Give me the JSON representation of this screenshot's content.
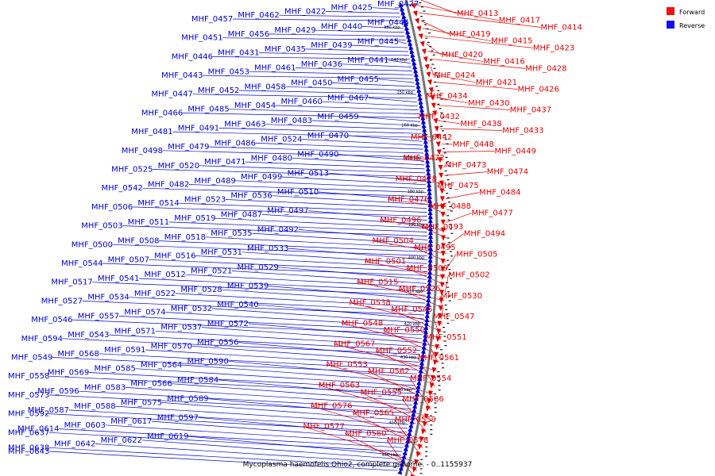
{
  "caption": "Mycoplasma haemofelis Ohio2, complete genome. - 0..1155937",
  "legend": {
    "forward": {
      "label": "Forward",
      "color": "#ee1111"
    },
    "reverse": {
      "label": "Reverse",
      "color": "#1111ee"
    }
  },
  "colors": {
    "forward": "#dd0000",
    "reverse": "#0000cc",
    "backbone": "#777777"
  },
  "ticks": [
    "130 kbp",
    "140 kbp",
    "150 kbp",
    "160 kbp",
    "170 kbp",
    "180 kbp",
    "190 kbp",
    "400 kbp",
    "410 kbp",
    "420 kbp",
    "430 kbp",
    "440 kbp",
    "450 kbp",
    "460 kbp"
  ],
  "reverse_labels": [
    "MHF_0427",
    "MHF_0425",
    "MHF_0422",
    "MHF_0462",
    "MHF_0457",
    "MHF_0444",
    "MHF_0440",
    "MHF_0429",
    "MHF_0456",
    "MHF_0451",
    "MHF_0445",
    "MHF_0439",
    "MHF_0435",
    "MHF_0431",
    "MHF_0446",
    "MHF_0441",
    "MHF_0436",
    "MHF_0461",
    "MHF_0453",
    "MHF_0443",
    "MHF_0455",
    "MHF_0450",
    "MHF_0458",
    "MHF_0452",
    "MHF_0447",
    "MHF_0467",
    "MHF_0460",
    "MHF_0454",
    "MHF_0485",
    "MHF_0466",
    "MHF_0459",
    "MHF_0483",
    "MHF_0463",
    "MHF_0491",
    "MHF_0481",
    "MHF_0470",
    "MHF_0524",
    "MHF_0486",
    "MHF_0479",
    "MHF_0498",
    "MHF_0490",
    "MHF_0480",
    "MHF_0471",
    "MHF_0520",
    "MHF_0525",
    "MHF_0513",
    "MHF_0499",
    "MHF_0489",
    "MHF_0482",
    "MHF_0542",
    "MHF_0510",
    "MHF_0536",
    "MHF_0523",
    "MHF_0514",
    "MHF_0506",
    "MHF_0497",
    "MHF_0487",
    "MHF_0519",
    "MHF_0511",
    "MHF_0503",
    "MHF_0492",
    "MHF_0535",
    "MHF_0518",
    "MHF_0508",
    "MHF_0500",
    "MHF_0533",
    "MHF_0531",
    "MHF_0516",
    "MHF_0507",
    "MHF_0544",
    "MHF_0529",
    "MHF_0521",
    "MHF_0512",
    "MHF_0541",
    "MHF_0517",
    "MHF_0539",
    "MHF_0528",
    "MHF_0522",
    "MHF_0534",
    "MHF_0527",
    "MHF_0540",
    "MHF_0532",
    "MHF_0574",
    "MHF_0557",
    "MHF_0546",
    "MHF_0572",
    "MHF_0537",
    "MHF_0571",
    "MHF_0543",
    "MHF_0594",
    "MHF_0556",
    "MHF_0570",
    "MHF_0591",
    "MHF_0568",
    "MHF_0549",
    "MHF_0590",
    "MHF_0564",
    "MHF_0585",
    "MHF_0569",
    "MHF_0558",
    "MHF_0584",
    "MHF_0566",
    "MHF_0583",
    "MHF_0596",
    "MHF_0573",
    "MHF_0589",
    "MHF_0575",
    "MHF_0588",
    "MHF_0587",
    "MHF_0592",
    "MHF_0597",
    "MHF_0617",
    "MHF_0603",
    "MHF_0614",
    "MHF_0637",
    "MHF_0619",
    "MHF_0622",
    "MHF_0642",
    "MHF_0638",
    "MHF_0643"
  ],
  "forward_labels": [
    "MHF_0413",
    "MHF_0417",
    "MHF_0414",
    "MHF_0419",
    "MHF_0415",
    "MHF_0423",
    "MHF_0420",
    "MHF_0416",
    "MHF_0428",
    "MHF_0424",
    "MHF_0421",
    "MHF_0426",
    "MHF_0434",
    "MHF_0430",
    "MHF_0437",
    "MHF_0432",
    "MHF_0438",
    "MHF_0433",
    "MHF_0442",
    "MHF_0448",
    "MHF_0449",
    "MHF_0472",
    "MHF_0473",
    "MHF_0474",
    "MHF_0478",
    "MHF_0475",
    "MHF_0484",
    "MHF_0476",
    "MHF_0488",
    "MHF_0477",
    "MHF_0496",
    "MHF_0493",
    "MHF_0494",
    "MHF_0504",
    "MHF_0495",
    "MHF_0505",
    "MHF_0501",
    "MHF_0509",
    "MHF_0502",
    "MHF_0515",
    "MHF_0526",
    "MHF_0530",
    "MHF_0538",
    "MHF_0545",
    "MHF_0547",
    "MHF_0548",
    "MHF_0550",
    "MHF_0551",
    "MHF_0567",
    "MHF_0552",
    "MHF_0561",
    "MHF_0553",
    "MHF_0562",
    "MHF_0554",
    "MHF_0563",
    "MHF_0555",
    "MHF_0586",
    "MHF_0576",
    "MHF_0565",
    "MHF_0559",
    "MHF_0577",
    "MHF_0560",
    "MHF_0578"
  ]
}
